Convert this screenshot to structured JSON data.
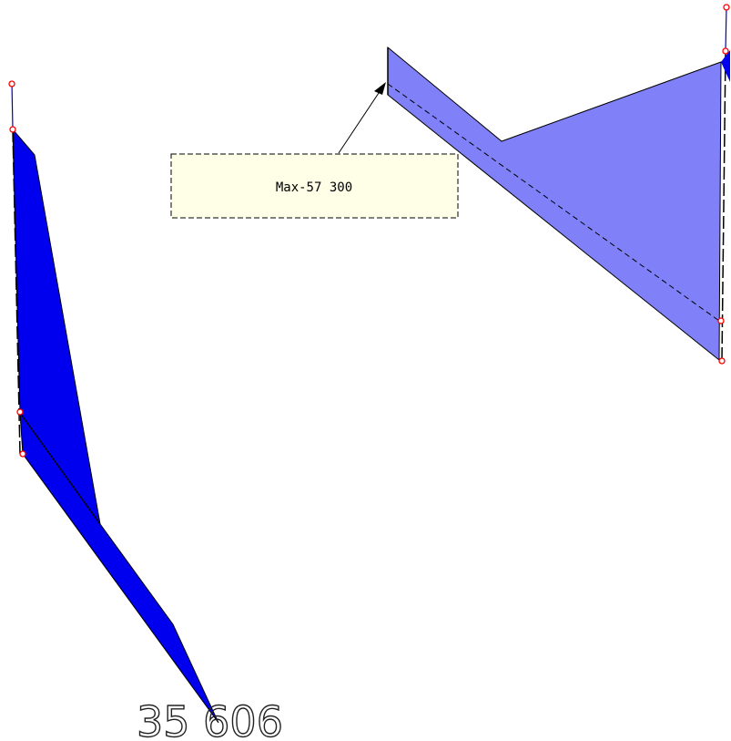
{
  "callout": {
    "label": "Max-57 300"
  },
  "value_label": {
    "text": "35 606"
  },
  "colors": {
    "left_fill": "#0000ee",
    "right_fill": "#8080f8",
    "node_marker": "#ff0000",
    "callout_bg": "#ffffe8",
    "outline": "#000000"
  }
}
